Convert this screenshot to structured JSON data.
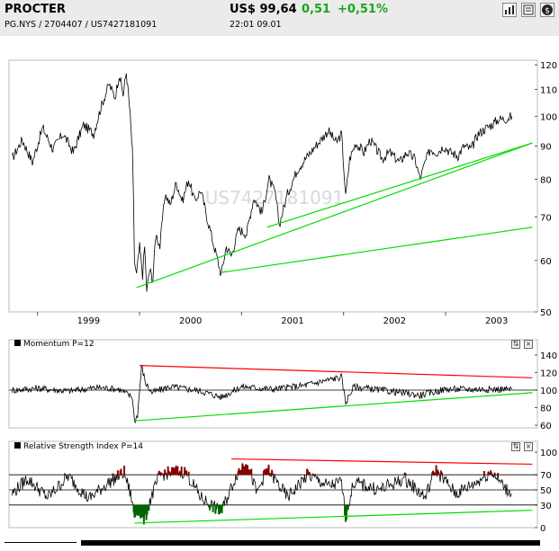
{
  "header": {
    "title": "PROCTER",
    "subtitle": "PG.NYS   /   2704407   /   US7427181091",
    "price": "US$ 99,64",
    "change": "0,51",
    "change_pct": "+0,51%",
    "time": "22:01   09.01",
    "buttons": [
      "bar-chart-icon",
      "news-icon",
      "dollar-icon"
    ]
  },
  "colors": {
    "price_line": "#000000",
    "support_line": "#00dd00",
    "resistance_line": "#ff0000",
    "rsi_overbought": "#8b0000",
    "rsi_oversold": "#006400"
  },
  "chart_data": [
    {
      "type": "line",
      "title": "",
      "watermark": "US7427181091",
      "scale": "log",
      "ylim": [
        50,
        122
      ],
      "yticks": [
        50,
        60,
        70,
        80,
        90,
        100,
        110,
        120
      ],
      "xticks": [
        "1999",
        "2000",
        "2001",
        "2002",
        "2003"
      ],
      "series": [
        {
          "values": [
            [
              1998.75,
              86
            ],
            [
              1998.85,
              92
            ],
            [
              1998.95,
              85
            ],
            [
              1999.05,
              96
            ],
            [
              1999.15,
              89
            ],
            [
              1999.25,
              94
            ],
            [
              1999.35,
              88
            ],
            [
              1999.45,
              97
            ],
            [
              1999.55,
              94
            ],
            [
              1999.62,
              103
            ],
            [
              1999.7,
              112
            ],
            [
              1999.76,
              107
            ],
            [
              1999.8,
              116
            ],
            [
              1999.84,
              108
            ],
            [
              1999.87,
              117
            ],
            [
              1999.9,
              104
            ],
            [
              1999.93,
              88
            ],
            [
              1999.95,
              60
            ],
            [
              1999.97,
              57
            ],
            [
              2000.0,
              63
            ],
            [
              2000.03,
              57
            ],
            [
              2000.05,
              63
            ],
            [
              2000.07,
              54
            ],
            [
              2000.1,
              58
            ],
            [
              2000.13,
              56
            ],
            [
              2000.16,
              66
            ],
            [
              2000.2,
              63
            ],
            [
              2000.25,
              76
            ],
            [
              2000.3,
              73
            ],
            [
              2000.36,
              79
            ],
            [
              2000.42,
              74
            ],
            [
              2000.48,
              80
            ],
            [
              2000.54,
              74
            ],
            [
              2000.6,
              77
            ],
            [
              2000.66,
              70
            ],
            [
              2000.72,
              64
            ],
            [
              2000.8,
              57
            ],
            [
              2000.85,
              63
            ],
            [
              2000.9,
              61
            ],
            [
              2000.97,
              67
            ],
            [
              2001.05,
              66
            ],
            [
              2001.12,
              75
            ],
            [
              2001.2,
              71
            ],
            [
              2001.27,
              80
            ],
            [
              2001.33,
              76
            ],
            [
              2001.37,
              68
            ],
            [
              2001.45,
              76
            ],
            [
              2001.55,
              83
            ],
            [
              2001.65,
              87
            ],
            [
              2001.75,
              91
            ],
            [
              2001.85,
              95
            ],
            [
              2001.93,
              91
            ],
            [
              2001.98,
              94
            ],
            [
              2002.02,
              75
            ],
            [
              2002.06,
              86
            ],
            [
              2002.12,
              91
            ],
            [
              2002.2,
              88
            ],
            [
              2002.26,
              92
            ],
            [
              2002.32,
              89
            ],
            [
              2002.38,
              86
            ],
            [
              2002.45,
              88
            ],
            [
              2002.55,
              85
            ],
            [
              2002.62,
              88
            ],
            [
              2002.7,
              86
            ],
            [
              2002.75,
              80
            ],
            [
              2002.8,
              85
            ],
            [
              2002.85,
              89
            ],
            [
              2002.92,
              88
            ],
            [
              2002.98,
              90
            ],
            [
              2003.05,
              88
            ],
            [
              2003.12,
              87
            ],
            [
              2003.18,
              90
            ],
            [
              2003.25,
              89
            ],
            [
              2003.32,
              94
            ],
            [
              2003.4,
              96
            ],
            [
              2003.45,
              97
            ],
            [
              2003.52,
              99
            ],
            [
              2003.58,
              99
            ],
            [
              2003.65,
              100
            ]
          ]
        }
      ],
      "trendlines": [
        {
          "color": "support",
          "from": [
            1999.97,
            54.5
          ],
          "to": [
            2003.85,
            91
          ]
        },
        {
          "color": "support",
          "from": [
            2001.25,
            67.5
          ],
          "to": [
            2003.85,
            91
          ]
        },
        {
          "color": "support",
          "from": [
            2000.8,
            57.5
          ],
          "to": [
            2003.85,
            67.5
          ]
        }
      ]
    },
    {
      "type": "line",
      "title": "Momentum P=12",
      "ylim": [
        57,
        145
      ],
      "yticks": [
        60,
        80,
        100,
        120,
        140
      ],
      "reference_line": 100,
      "series": [
        {
          "values": [
            [
              1998.75,
              100
            ],
            [
              1999.0,
              102
            ],
            [
              1999.3,
              99
            ],
            [
              1999.6,
              103
            ],
            [
              1999.8,
              101
            ],
            [
              1999.93,
              92
            ],
            [
              1999.95,
              64
            ],
            [
              1999.98,
              72
            ],
            [
              2000.02,
              127
            ],
            [
              2000.06,
              108
            ],
            [
              2000.12,
              97
            ],
            [
              2000.3,
              104
            ],
            [
              2000.6,
              99
            ],
            [
              2000.8,
              92
            ],
            [
              2001.0,
              104
            ],
            [
              2001.3,
              101
            ],
            [
              2001.6,
              105
            ],
            [
              2001.98,
              115
            ],
            [
              2002.02,
              86
            ],
            [
              2002.1,
              104
            ],
            [
              2002.5,
              98
            ],
            [
              2002.75,
              94
            ],
            [
              2003.0,
              101
            ],
            [
              2003.3,
              101
            ],
            [
              2003.65,
              101
            ]
          ]
        }
      ],
      "trendlines": [
        {
          "color": "resistance",
          "from": [
            2000.0,
            128
          ],
          "to": [
            2003.85,
            114
          ]
        },
        {
          "color": "support",
          "from": [
            1999.95,
            65
          ],
          "to": [
            2003.85,
            97
          ]
        }
      ]
    },
    {
      "type": "line",
      "title": "Relative Strength Index P=14",
      "ylim": [
        0,
        100
      ],
      "yticks": [
        0,
        30,
        50,
        70,
        100
      ],
      "reference_lines": [
        30,
        50,
        70
      ],
      "series": [
        {
          "values": [
            [
              1998.75,
              45
            ],
            [
              1998.9,
              65
            ],
            [
              1999.1,
              40
            ],
            [
              1999.3,
              68
            ],
            [
              1999.5,
              38
            ],
            [
              1999.7,
              60
            ],
            [
              1999.85,
              73
            ],
            [
              1999.92,
              40
            ],
            [
              1999.95,
              14
            ],
            [
              1999.98,
              25
            ],
            [
              2000.05,
              10
            ],
            [
              2000.1,
              35
            ],
            [
              2000.2,
              70
            ],
            [
              2000.35,
              74
            ],
            [
              2000.45,
              74
            ],
            [
              2000.6,
              40
            ],
            [
              2000.8,
              20
            ],
            [
              2000.95,
              70
            ],
            [
              2001.05,
              90
            ],
            [
              2001.15,
              45
            ],
            [
              2001.25,
              78
            ],
            [
              2001.45,
              40
            ],
            [
              2001.65,
              70
            ],
            [
              2001.85,
              55
            ],
            [
              2001.98,
              60
            ],
            [
              2002.02,
              15
            ],
            [
              2002.1,
              60
            ],
            [
              2002.35,
              50
            ],
            [
              2002.6,
              65
            ],
            [
              2002.8,
              40
            ],
            [
              2002.9,
              77
            ],
            [
              2003.1,
              45
            ],
            [
              2003.3,
              60
            ],
            [
              2003.45,
              75
            ],
            [
              2003.6,
              50
            ],
            [
              2003.65,
              45
            ]
          ]
        }
      ],
      "trendlines": [
        {
          "color": "resistance",
          "from": [
            2000.9,
            91
          ],
          "to": [
            2003.85,
            84
          ]
        },
        {
          "color": "support",
          "from": [
            1999.95,
            6
          ],
          "to": [
            2003.85,
            23
          ]
        }
      ]
    }
  ]
}
